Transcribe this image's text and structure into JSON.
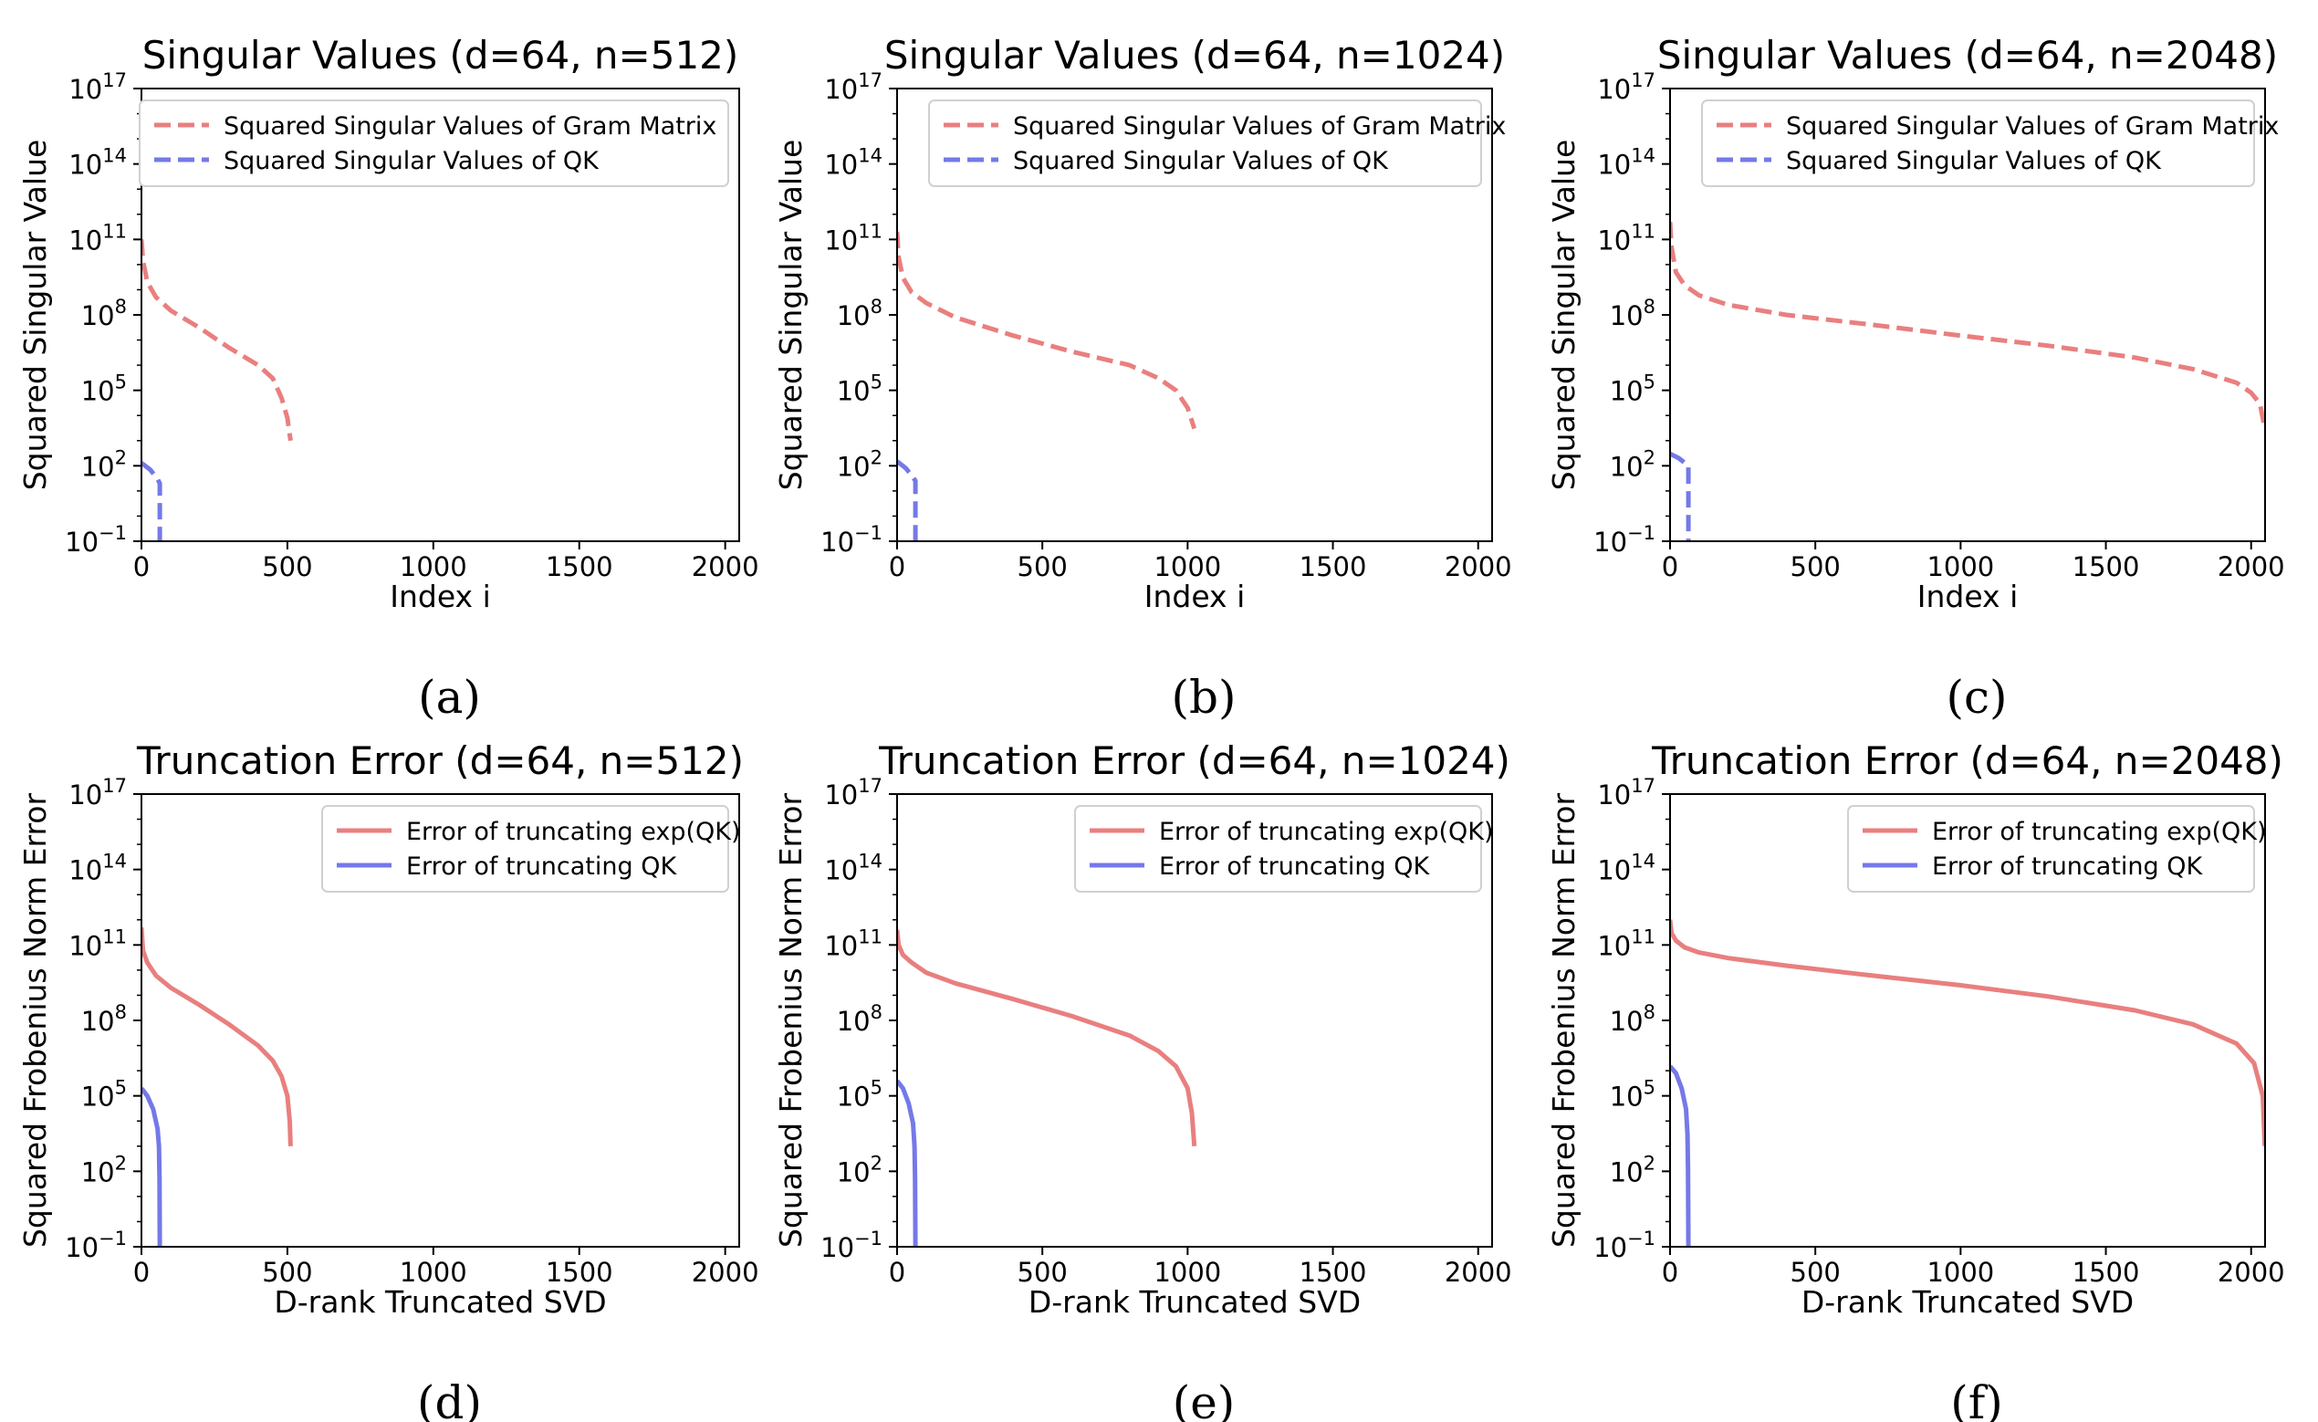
{
  "chart_data": [
    {
      "panel": "(a)",
      "type": "line",
      "title": "Singular Values (d=64, n=512)",
      "xlabel": "Index i",
      "ylabel": "Squared Singular Value",
      "xlim": [
        0,
        2048
      ],
      "ylim": [
        0.1,
        1e+17
      ],
      "yscale": "log",
      "xticks": [
        "0",
        "500",
        "1000",
        "1500",
        "2000"
      ],
      "yticks": [
        {
          "base": "10",
          "exp": "−1"
        },
        {
          "base": "10",
          "exp": "2"
        },
        {
          "base": "10",
          "exp": "5"
        },
        {
          "base": "10",
          "exp": "8"
        },
        {
          "base": "10",
          "exp": "11"
        },
        {
          "base": "10",
          "exp": "14"
        },
        {
          "base": "10",
          "exp": "17"
        }
      ],
      "legend_position": "top-right",
      "grid": false,
      "series": [
        {
          "name": "Squared Singular Values of Gram Matrix",
          "color": "#e97f7f",
          "style": "dashed",
          "x": [
            0,
            5,
            20,
            50,
            100,
            200,
            300,
            400,
            450,
            480,
            500,
            511
          ],
          "y": [
            100000000000.0,
            15000000000.0,
            2000000000.0,
            500000000.0,
            150000000.0,
            30000000.0,
            5000000.0,
            1000000.0,
            300000.0,
            50000.0,
            8000.0,
            1000.0
          ]
        },
        {
          "name": "Squared Singular Values of QK",
          "color": "#7479e8",
          "style": "dashed",
          "x": [
            0,
            30,
            55,
            63,
            63
          ],
          "y": [
            130,
            70,
            30,
            20,
            0.1
          ]
        }
      ]
    },
    {
      "panel": "(b)",
      "type": "line",
      "title": "Singular Values (d=64, n=1024)",
      "xlabel": "Index i",
      "ylabel": "Squared Singular Value",
      "xlim": [
        0,
        2048
      ],
      "ylim": [
        0.1,
        1e+17
      ],
      "yscale": "log",
      "xticks": [
        "0",
        "500",
        "1000",
        "1500",
        "2000"
      ],
      "yticks": [
        {
          "base": "10",
          "exp": "−1"
        },
        {
          "base": "10",
          "exp": "2"
        },
        {
          "base": "10",
          "exp": "5"
        },
        {
          "base": "10",
          "exp": "8"
        },
        {
          "base": "10",
          "exp": "11"
        },
        {
          "base": "10",
          "exp": "14"
        },
        {
          "base": "10",
          "exp": "17"
        }
      ],
      "legend_position": "top-right",
      "grid": false,
      "series": [
        {
          "name": "Squared Singular Values of Gram Matrix",
          "color": "#e97f7f",
          "style": "dashed",
          "x": [
            0,
            5,
            20,
            50,
            100,
            200,
            400,
            600,
            800,
            900,
            960,
            1000,
            1023
          ],
          "y": [
            200000000000.0,
            20000000000.0,
            3000000000.0,
            800000000.0,
            300000000.0,
            80000000.0,
            15000000.0,
            3500000.0,
            1000000.0,
            300000.0,
            100000.0,
            20000.0,
            3000.0
          ]
        },
        {
          "name": "Squared Singular Values of QK",
          "color": "#7479e8",
          "style": "dashed",
          "x": [
            0,
            30,
            55,
            63,
            63
          ],
          "y": [
            150,
            80,
            35,
            25,
            0.1
          ]
        }
      ]
    },
    {
      "panel": "(c)",
      "type": "line",
      "title": "Singular Values (d=64, n=2048)",
      "xlabel": "Index i",
      "ylabel": "Squared Singular Value",
      "xlim": [
        0,
        2048
      ],
      "ylim": [
        0.1,
        1e+17
      ],
      "yscale": "log",
      "xticks": [
        "0",
        "500",
        "1000",
        "1500",
        "2000"
      ],
      "yticks": [
        {
          "base": "10",
          "exp": "−1"
        },
        {
          "base": "10",
          "exp": "2"
        },
        {
          "base": "10",
          "exp": "5"
        },
        {
          "base": "10",
          "exp": "8"
        },
        {
          "base": "10",
          "exp": "11"
        },
        {
          "base": "10",
          "exp": "14"
        },
        {
          "base": "10",
          "exp": "17"
        }
      ],
      "legend_position": "top-right",
      "grid": false,
      "series": [
        {
          "name": "Squared Singular Values of Gram Matrix",
          "color": "#e97f7f",
          "style": "dashed",
          "x": [
            0,
            5,
            20,
            50,
            100,
            200,
            400,
            700,
            1000,
            1300,
            1600,
            1800,
            1950,
            2000,
            2030,
            2047
          ],
          "y": [
            500000000000.0,
            50000000000.0,
            5000000000.0,
            1500000000.0,
            600000000.0,
            250000000.0,
            100000000.0,
            40000000.0,
            15000000.0,
            6000000.0,
            2000000.0,
            700000.0,
            200000.0,
            80000.0,
            30000.0,
            3000.0
          ]
        },
        {
          "name": "Squared Singular Values of QK",
          "color": "#7479e8",
          "style": "dashed",
          "x": [
            0,
            30,
            55,
            63,
            63
          ],
          "y": [
            300,
            200,
            120,
            100,
            0.1
          ]
        }
      ]
    },
    {
      "panel": "(d)",
      "type": "line",
      "title": "Truncation Error (d=64, n=512)",
      "xlabel": "D-rank Truncated SVD",
      "ylabel": "Squared Frobenius Norm Error",
      "xlim": [
        0,
        2048
      ],
      "ylim": [
        0.1,
        1e+17
      ],
      "yscale": "log",
      "xticks": [
        "0",
        "500",
        "1000",
        "1500",
        "2000"
      ],
      "yticks": [
        {
          "base": "10",
          "exp": "−1"
        },
        {
          "base": "10",
          "exp": "2"
        },
        {
          "base": "10",
          "exp": "5"
        },
        {
          "base": "10",
          "exp": "8"
        },
        {
          "base": "10",
          "exp": "11"
        },
        {
          "base": "10",
          "exp": "14"
        },
        {
          "base": "10",
          "exp": "17"
        }
      ],
      "legend_position": "top-right",
      "grid": false,
      "series": [
        {
          "name": "Error of truncating exp(QK)",
          "color": "#e97f7f",
          "style": "solid",
          "x": [
            0,
            5,
            20,
            50,
            100,
            200,
            300,
            400,
            450,
            480,
            500,
            508,
            511
          ],
          "y": [
            500000000000.0,
            60000000000.0,
            20000000000.0,
            6000000000.0,
            2000000000.0,
            400000000.0,
            70000000.0,
            10000000.0,
            2500000.0,
            600000.0,
            100000.0,
            10000.0,
            1000.0
          ]
        },
        {
          "name": "Error of truncating QK",
          "color": "#7479e8",
          "style": "solid",
          "x": [
            0,
            20,
            40,
            55,
            60,
            62,
            63
          ],
          "y": [
            200000.0,
            100000.0,
            30000.0,
            5000.0,
            1000.0,
            50,
            0.1
          ]
        }
      ]
    },
    {
      "panel": "(e)",
      "type": "line",
      "title": "Truncation Error (d=64, n=1024)",
      "xlabel": "D-rank Truncated SVD",
      "ylabel": "Squared Frobenius Norm Error",
      "xlim": [
        0,
        2048
      ],
      "ylim": [
        0.1,
        1e+17
      ],
      "yscale": "log",
      "xticks": [
        "0",
        "500",
        "1000",
        "1500",
        "2000"
      ],
      "yticks": [
        {
          "base": "10",
          "exp": "−1"
        },
        {
          "base": "10",
          "exp": "2"
        },
        {
          "base": "10",
          "exp": "5"
        },
        {
          "base": "10",
          "exp": "8"
        },
        {
          "base": "10",
          "exp": "11"
        },
        {
          "base": "10",
          "exp": "14"
        },
        {
          "base": "10",
          "exp": "17"
        }
      ],
      "legend_position": "top-right",
      "grid": false,
      "series": [
        {
          "name": "Error of truncating exp(QK)",
          "color": "#e97f7f",
          "style": "solid",
          "x": [
            0,
            5,
            20,
            50,
            100,
            200,
            400,
            600,
            800,
            900,
            960,
            1000,
            1015,
            1023
          ],
          "y": [
            400000000000.0,
            100000000000.0,
            40000000000.0,
            20000000000.0,
            8000000000.0,
            3000000000.0,
            700000000.0,
            150000000.0,
            25000000.0,
            6000000.0,
            1500000.0,
            200000.0,
            20000.0,
            1000.0
          ]
        },
        {
          "name": "Error of truncating QK",
          "color": "#7479e8",
          "style": "solid",
          "x": [
            0,
            20,
            40,
            55,
            60,
            62,
            63
          ],
          "y": [
            400000.0,
            200000.0,
            50000.0,
            8000.0,
            1000.0,
            50,
            0.1
          ]
        }
      ]
    },
    {
      "panel": "(f)",
      "type": "line",
      "title": "Truncation Error (d=64, n=2048)",
      "xlabel": "D-rank Truncated SVD",
      "ylabel": "Squared Frobenius Norm Error",
      "xlim": [
        0,
        2048
      ],
      "ylim": [
        0.1,
        1e+17
      ],
      "yscale": "log",
      "xticks": [
        "0",
        "500",
        "1000",
        "1500",
        "2000"
      ],
      "yticks": [
        {
          "base": "10",
          "exp": "−1"
        },
        {
          "base": "10",
          "exp": "2"
        },
        {
          "base": "10",
          "exp": "5"
        },
        {
          "base": "10",
          "exp": "8"
        },
        {
          "base": "10",
          "exp": "11"
        },
        {
          "base": "10",
          "exp": "14"
        },
        {
          "base": "10",
          "exp": "17"
        }
      ],
      "legend_position": "top-right",
      "grid": false,
      "series": [
        {
          "name": "Error of truncating exp(QK)",
          "color": "#e97f7f",
          "style": "solid",
          "x": [
            0,
            5,
            20,
            50,
            100,
            200,
            400,
            700,
            1000,
            1300,
            1600,
            1800,
            1950,
            2010,
            2040,
            2047
          ],
          "y": [
            1000000000000.0,
            300000000000.0,
            150000000000.0,
            80000000000.0,
            50000000000.0,
            30000000000.0,
            15000000000.0,
            6000000000.0,
            2500000000.0,
            900000000.0,
            250000000.0,
            70000000.0,
            12000000.0,
            2000000.0,
            100000.0,
            1000.0
          ]
        },
        {
          "name": "Error of truncating QK",
          "color": "#7479e8",
          "style": "solid",
          "x": [
            0,
            20,
            40,
            55,
            60,
            62,
            63
          ],
          "y": [
            1500000.0,
            800000.0,
            200000.0,
            30000.0,
            3000.0,
            100,
            0.1
          ]
        }
      ]
    }
  ]
}
